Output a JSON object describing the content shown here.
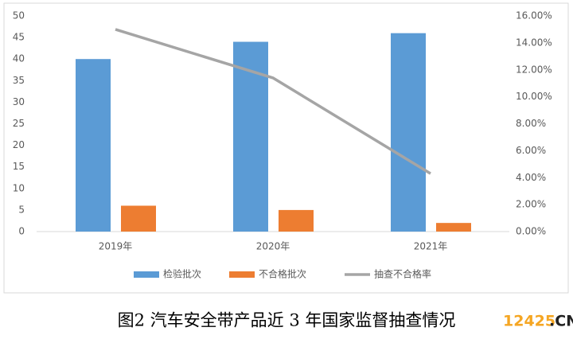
{
  "chart_data": {
    "type": "bar",
    "categories": [
      "2019年",
      "2020年",
      "2021年"
    ],
    "series": [
      {
        "name": "检验批次",
        "color": "#5b9bd5",
        "values": [
          40,
          44,
          46
        ]
      },
      {
        "name": "不合格批次",
        "color": "#ed7d31",
        "values": [
          6,
          5,
          2
        ]
      },
      {
        "name": "抽查不合格率",
        "color": "#a5a5a5",
        "type": "line",
        "axis": "y2",
        "values": [
          15,
          11.4,
          4.3
        ]
      }
    ],
    "ylim": [
      0,
      50
    ],
    "yticks": [
      0,
      5,
      10,
      15,
      20,
      25,
      30,
      35,
      40,
      45,
      50
    ],
    "y2lim": [
      0,
      16
    ],
    "y2ticks": [
      {
        "value": 0,
        "label": "0.00%"
      },
      {
        "value": 2,
        "label": "2.00%"
      },
      {
        "value": 4,
        "label": "4.00%"
      },
      {
        "value": 6,
        "label": "6.00%"
      },
      {
        "value": 8,
        "label": "8.00%"
      },
      {
        "value": 10,
        "label": "10.00%"
      },
      {
        "value": 12,
        "label": "12.00%"
      },
      {
        "value": 14,
        "label": "14.00%"
      },
      {
        "value": 16,
        "label": "16.00%"
      }
    ],
    "grid": false,
    "legend": "bottom"
  },
  "caption": "图2 汽车安全带产品近 3 年国家监督抽查情况",
  "watermark": [
    "12425",
    ".CN"
  ]
}
